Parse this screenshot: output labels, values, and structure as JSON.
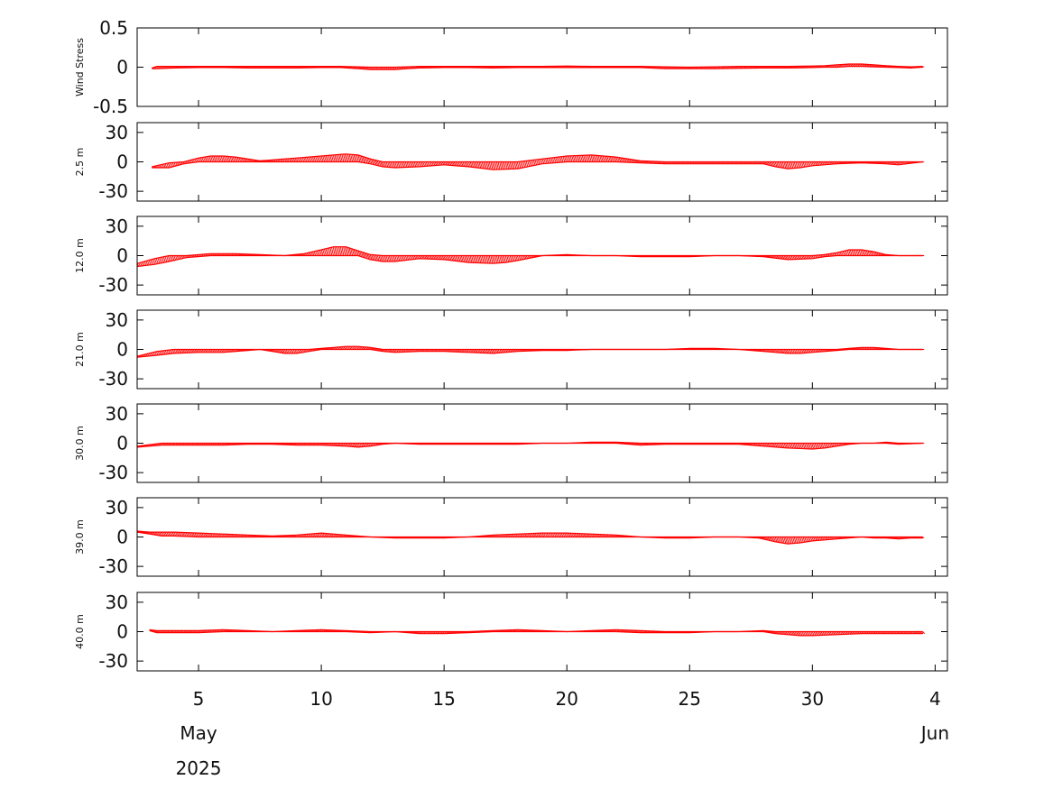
{
  "chart_data": {
    "type": "line",
    "style": "stick-plot",
    "color": "#ff0000",
    "x_axis": {
      "tick_labels": [
        "5",
        "10",
        "15",
        "20",
        "25",
        "30",
        "4"
      ],
      "tick_days": [
        5,
        10,
        15,
        20,
        25,
        30,
        35
      ],
      "xlim_days": [
        2.5,
        35.5
      ],
      "month_labels": [
        "May",
        "Jun"
      ],
      "year_label": "2025"
    },
    "panels": [
      {
        "label": "Wind Stress",
        "ylim": [
          -0.5,
          0.5
        ],
        "yticks": [
          "0.5",
          "0",
          "-0.5"
        ],
        "ytick_values": [
          0.5,
          0,
          -0.5
        ],
        "x_days": [
          3.1,
          3.3,
          4,
          5,
          6,
          7,
          8,
          9,
          10,
          10.8,
          11.5,
          12,
          12.5,
          13,
          13.5,
          14,
          15,
          16,
          17,
          18,
          19,
          20,
          21,
          22,
          23,
          24,
          25,
          26,
          27,
          28,
          29,
          30,
          30.5,
          31,
          31.5,
          32,
          32.5,
          33,
          33.5,
          34,
          34.5
        ],
        "upper": [
          -0.01,
          0.01,
          0.01,
          0.01,
          0.01,
          0.01,
          0.01,
          0.01,
          0.01,
          0.01,
          0.005,
          0,
          0,
          0,
          0.005,
          0.01,
          0.01,
          0.01,
          0.01,
          0.01,
          0.01,
          0.015,
          0.01,
          0.01,
          0.01,
          0.005,
          0,
          0.005,
          0.01,
          0.01,
          0.01,
          0.015,
          0.02,
          0.03,
          0.04,
          0.04,
          0.03,
          0.02,
          0.01,
          0.005,
          0.01
        ],
        "lower": [
          -0.02,
          -0.02,
          -0.01,
          -0.005,
          -0.005,
          -0.01,
          -0.01,
          -0.01,
          -0.005,
          -0.005,
          -0.02,
          -0.03,
          -0.03,
          -0.03,
          -0.02,
          -0.01,
          -0.005,
          -0.005,
          -0.01,
          -0.005,
          -0.005,
          -0.005,
          -0.005,
          -0.005,
          -0.005,
          -0.02,
          -0.02,
          -0.02,
          -0.015,
          -0.01,
          -0.01,
          -0.005,
          0,
          0,
          0.01,
          0.01,
          0.005,
          0,
          -0.005,
          -0.01,
          0
        ]
      },
      {
        "label": "2.5 m",
        "ylim": [
          -40,
          40
        ],
        "yticks": [
          "30",
          "0",
          "-30"
        ],
        "ytick_values": [
          30,
          0,
          -30
        ],
        "x_days": [
          3.1,
          3.8,
          4.4,
          5,
          5.5,
          6,
          6.5,
          7,
          7.5,
          8,
          8.5,
          9,
          9.5,
          10,
          10.5,
          11,
          11.5,
          12,
          12.5,
          13,
          14,
          15,
          16,
          17,
          18,
          19,
          20,
          21,
          22,
          23,
          24,
          25,
          26,
          27,
          28,
          28.5,
          29,
          29.5,
          30,
          31,
          32,
          33,
          33.5,
          34.5
        ],
        "upper": [
          -5,
          -1,
          0,
          4,
          6,
          6,
          5,
          3,
          1,
          2,
          3,
          4,
          5,
          6,
          7,
          8,
          7,
          3,
          0,
          0,
          0,
          0,
          0,
          0,
          0,
          3,
          6,
          7,
          5,
          1,
          0,
          0,
          0,
          0,
          0,
          0,
          0,
          0,
          0,
          0,
          0,
          0,
          0,
          0
        ],
        "lower": [
          -6,
          -6,
          -2,
          0,
          0,
          0,
          0,
          0,
          0,
          0,
          0,
          0,
          0,
          0,
          0,
          0,
          0,
          -2,
          -5,
          -6,
          -5,
          -3,
          -5,
          -8,
          -7,
          -2,
          0,
          0,
          0,
          -1,
          -2,
          -2,
          -2,
          -2,
          -2,
          -5,
          -7,
          -6,
          -4,
          -2,
          -1,
          -2,
          -3,
          0
        ]
      },
      {
        "label": "12.0 m",
        "ylim": [
          -40,
          40
        ],
        "yticks": [
          "30",
          "0",
          "-30"
        ],
        "ytick_values": [
          30,
          0,
          -30
        ],
        "x_days": [
          2.5,
          3.2,
          3.8,
          4.5,
          5.5,
          6.5,
          7.5,
          8.5,
          9.3,
          10,
          10.5,
          11,
          11.5,
          12,
          12.5,
          13,
          14,
          15,
          16,
          17,
          17.5,
          18,
          19,
          20,
          21,
          22,
          23,
          24,
          25,
          26,
          27,
          28,
          29,
          30,
          30.5,
          31,
          31.5,
          32,
          32.5,
          33,
          33.5,
          34.5
        ],
        "upper": [
          -8,
          -3,
          0,
          0,
          2,
          2,
          1,
          0,
          2,
          6,
          9,
          9,
          5,
          1,
          0,
          0,
          0,
          0,
          0,
          0,
          0,
          0,
          0,
          1,
          0,
          0,
          0,
          0,
          0,
          0,
          0,
          0,
          0,
          0,
          1,
          3,
          6,
          6,
          4,
          1,
          0,
          0
        ],
        "lower": [
          -11,
          -9,
          -6,
          -2,
          0,
          0,
          0,
          0,
          0,
          0,
          0,
          0,
          0,
          -4,
          -6,
          -6,
          -3,
          -4,
          -7,
          -8,
          -7,
          -5,
          0,
          0,
          0,
          0,
          -1,
          -1,
          -1,
          0,
          0,
          -1,
          -4,
          -3,
          -1,
          0,
          0,
          0,
          0,
          0,
          0,
          0
        ]
      },
      {
        "label": "21.0 m",
        "ylim": [
          -40,
          40
        ],
        "yticks": [
          "30",
          "0",
          "-30"
        ],
        "ytick_values": [
          30,
          0,
          -30
        ],
        "x_days": [
          2.5,
          3.3,
          4,
          5,
          6,
          7,
          7.5,
          8,
          8.5,
          9,
          9.5,
          10,
          10.5,
          11,
          11.5,
          12,
          12.5,
          13,
          14,
          15,
          16,
          17,
          18,
          19,
          20,
          21,
          22,
          23,
          24,
          25,
          26,
          27,
          28,
          28.5,
          29,
          29.5,
          30,
          31,
          31.5,
          32,
          32.5,
          33,
          33.5,
          34.5
        ],
        "upper": [
          -7,
          -2,
          0,
          0,
          0,
          0,
          0,
          0,
          0,
          0,
          0,
          1,
          2,
          3,
          3,
          2,
          0,
          0,
          0,
          0,
          0,
          0,
          0,
          0,
          0,
          0,
          0,
          0,
          0,
          1,
          1,
          0,
          0,
          0,
          0,
          0,
          0,
          0,
          1,
          2,
          2,
          1,
          0,
          0
        ],
        "lower": [
          -8,
          -6,
          -4,
          -3,
          -3,
          -1,
          0,
          -2,
          -4,
          -4,
          -2,
          0,
          0,
          0,
          0,
          0,
          -2,
          -3,
          -2,
          -2,
          -3,
          -4,
          -2,
          -1,
          -1,
          0,
          0,
          0,
          0,
          0,
          0,
          0,
          -2,
          -3,
          -4,
          -4,
          -3,
          -1,
          0,
          0,
          0,
          0,
          0,
          0
        ]
      },
      {
        "label": "30.0 m",
        "ylim": [
          -40,
          40
        ],
        "yticks": [
          "30",
          "0",
          "-30"
        ],
        "ytick_values": [
          30,
          0,
          -30
        ],
        "x_days": [
          2.5,
          3.5,
          4,
          5,
          6,
          7,
          8,
          9,
          10,
          11,
          11.5,
          12,
          12.5,
          13,
          14,
          15,
          16,
          17,
          18,
          19,
          20,
          21,
          22,
          23,
          24,
          25,
          26,
          27,
          28,
          29,
          30,
          30.5,
          31,
          31.5,
          32,
          32.5,
          33,
          33.5,
          34.5
        ],
        "upper": [
          -3,
          0,
          0,
          0,
          0,
          0,
          0,
          0,
          0,
          0,
          0,
          0,
          0,
          0,
          0,
          0,
          0,
          0,
          0,
          0,
          0,
          1,
          1,
          0,
          0,
          0,
          0,
          0,
          0,
          0,
          0,
          0,
          0,
          0,
          0,
          0,
          1,
          0,
          0
        ],
        "lower": [
          -4,
          -2,
          -2,
          -2,
          -2,
          -1,
          -1,
          -2,
          -2,
          -3,
          -4,
          -3,
          -1,
          0,
          -1,
          -1,
          -1,
          -1,
          -1,
          0,
          0,
          0,
          0,
          -2,
          -1,
          -1,
          -1,
          -1,
          -3,
          -5,
          -6,
          -5,
          -3,
          -1,
          0,
          0,
          0,
          -1,
          0
        ]
      },
      {
        "label": "39.0 m",
        "ylim": [
          -40,
          40
        ],
        "yticks": [
          "30",
          "0",
          "-30"
        ],
        "ytick_values": [
          30,
          0,
          -30
        ],
        "x_days": [
          2.5,
          3,
          3.5,
          4,
          5,
          6,
          7,
          8,
          9,
          10,
          11,
          12,
          13,
          14,
          15,
          16,
          17,
          18,
          19,
          20,
          21,
          22,
          23,
          24,
          25,
          26,
          27,
          27.8,
          28.5,
          29,
          29.5,
          30,
          31,
          32,
          32.5,
          33,
          33.5,
          34,
          34.5
        ],
        "upper": [
          6,
          5,
          5,
          5,
          4,
          3,
          2,
          1,
          2,
          4,
          2,
          0,
          0,
          0,
          0,
          0,
          2,
          3,
          4,
          4,
          3,
          2,
          0,
          0,
          0,
          0,
          0,
          0,
          0,
          0,
          0,
          0,
          0,
          0,
          0,
          0,
          0,
          0,
          0
        ],
        "lower": [
          5,
          3,
          1,
          1,
          0,
          0,
          0,
          0,
          0,
          0,
          0,
          0,
          -1,
          -1,
          -1,
          0,
          0,
          0,
          0,
          0,
          0,
          0,
          0,
          -1,
          -1,
          0,
          0,
          -1,
          -5,
          -7,
          -6,
          -4,
          -2,
          0,
          -1,
          -1,
          -2,
          -1,
          -1
        ]
      },
      {
        "label": "40.0 m",
        "ylim": [
          -40,
          40
        ],
        "yticks": [
          "30",
          "0",
          "-30"
        ],
        "ytick_values": [
          30,
          0,
          -30
        ],
        "x_days": [
          3,
          3.3,
          4,
          5,
          6,
          7,
          8,
          9,
          10,
          11,
          12,
          13,
          14,
          15,
          16,
          17,
          18,
          19,
          20,
          21,
          22,
          23,
          24,
          25,
          26,
          27,
          28,
          28.5,
          29,
          29.5,
          30,
          31,
          32,
          33,
          34,
          34.5
        ],
        "upper": [
          2,
          1,
          1,
          1,
          2,
          1,
          0,
          1,
          2,
          1,
          0,
          0,
          0,
          0,
          0,
          1,
          2,
          1,
          0,
          1,
          2,
          1,
          0,
          0,
          0,
          0,
          1,
          0,
          0,
          0,
          0,
          0,
          0,
          0,
          0,
          0
        ],
        "lower": [
          1,
          -1,
          -1,
          -1,
          0,
          0,
          0,
          0,
          0,
          0,
          -1,
          0,
          -2,
          -2,
          -1,
          0,
          0,
          0,
          0,
          0,
          0,
          -1,
          -1,
          -1,
          0,
          0,
          0,
          -2,
          -3,
          -4,
          -4,
          -3,
          -2,
          -2,
          -2,
          -2
        ]
      }
    ]
  }
}
